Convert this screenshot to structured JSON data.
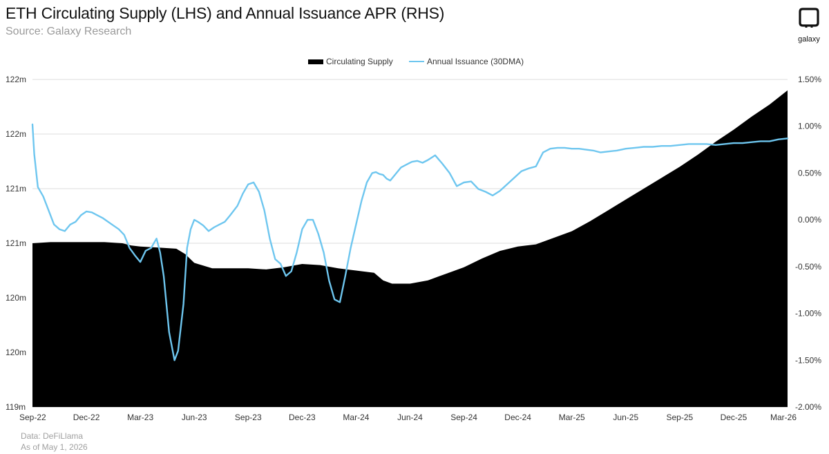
{
  "header": {
    "title": "ETH Circulating Supply (LHS) and Annual Issuance APR (RHS)",
    "subtitle": "Source: Galaxy Research"
  },
  "logo": {
    "icon": "galaxy-logo-icon",
    "word": "galaxy"
  },
  "footer": {
    "data_source": "Data: DeFiLlama",
    "as_of": "As of May 1, 2026"
  },
  "colors": {
    "supply_area": "#000000",
    "issuance_line": "#6ec6ef",
    "grid": "#dddddd"
  },
  "chart_data": {
    "type": "area",
    "title": "ETH Circulating Supply (LHS) and Annual Issuance APR (RHS)",
    "legend": {
      "placement": "top-center",
      "entries": [
        "Circulating Supply",
        "Annual Issuance (30DMA)"
      ]
    },
    "grid": true,
    "x_ticks": [
      "Sep-22",
      "Dec-22",
      "Mar-23",
      "Jun-23",
      "Sep-23",
      "Dec-23",
      "Mar-24",
      "Jun-24",
      "Sep-24",
      "Dec-24",
      "Mar-25",
      "Jun-25",
      "Sep-25",
      "Dec-25",
      "Mar-26"
    ],
    "y_left": {
      "ticks": [
        "119m",
        "120m",
        "120m",
        "121m",
        "121m",
        "122m",
        "122m"
      ],
      "range": [
        119.0,
        122.0
      ]
    },
    "y_right": {
      "ticks": [
        "-2.00%",
        "-1.50%",
        "-1.00%",
        "-0.50%",
        "0.00%",
        "0.50%",
        "1.00%",
        "1.50%"
      ],
      "range": [
        -2.0,
        1.5
      ]
    },
    "series": [
      {
        "name": "Circulating Supply",
        "type": "area",
        "axis": "left",
        "unit": "m ETH",
        "x_month_index": [
          0,
          1,
          2,
          3,
          4,
          5,
          5.5,
          6,
          7,
          8,
          8.5,
          9,
          10,
          11,
          12,
          13,
          14,
          15,
          16,
          17,
          18,
          19,
          19.5,
          20,
          21,
          22,
          23,
          24,
          25,
          26,
          27,
          28,
          29,
          30,
          31,
          32,
          33,
          34,
          35,
          36,
          37,
          38,
          39,
          40,
          41,
          42
        ],
        "values": [
          120.5,
          120.51,
          120.51,
          120.51,
          120.51,
          120.5,
          120.48,
          120.47,
          120.46,
          120.45,
          120.4,
          120.32,
          120.27,
          120.27,
          120.27,
          120.26,
          120.28,
          120.31,
          120.3,
          120.27,
          120.25,
          120.23,
          120.16,
          120.13,
          120.13,
          120.16,
          120.22,
          120.28,
          120.36,
          120.43,
          120.47,
          120.49,
          120.55,
          120.61,
          120.7,
          120.8,
          120.9,
          121.0,
          121.1,
          121.2,
          121.31,
          121.43,
          121.54,
          121.66,
          121.77,
          121.9
        ]
      },
      {
        "name": "Annual Issuance (30DMA)",
        "type": "line",
        "axis": "right",
        "unit": "%",
        "x_month_index": [
          0,
          0.1,
          0.3,
          0.6,
          0.9,
          1.2,
          1.5,
          1.8,
          2.1,
          2.4,
          2.7,
          3.0,
          3.3,
          3.6,
          3.9,
          4.2,
          4.5,
          4.8,
          5.1,
          5.4,
          5.7,
          6.0,
          6.3,
          6.6,
          6.9,
          7.1,
          7.3,
          7.6,
          7.9,
          8.1,
          8.4,
          8.6,
          8.8,
          9.0,
          9.2,
          9.5,
          9.8,
          10.1,
          10.4,
          10.7,
          11.0,
          11.4,
          11.7,
          12.0,
          12.3,
          12.6,
          12.9,
          13.2,
          13.5,
          13.8,
          14.1,
          14.4,
          14.7,
          15.0,
          15.3,
          15.6,
          15.9,
          16.2,
          16.5,
          16.8,
          17.1,
          17.4,
          17.7,
          18.0,
          18.3,
          18.6,
          18.9,
          19.1,
          19.3,
          19.5,
          19.7,
          19.9,
          20.2,
          20.5,
          20.8,
          21.1,
          21.4,
          21.7,
          22.0,
          22.4,
          22.8,
          23.2,
          23.6,
          24.0,
          24.4,
          24.8,
          25.2,
          25.6,
          26.0,
          26.4,
          26.8,
          27.2,
          27.6,
          28.0,
          28.4,
          28.8,
          29.2,
          29.6,
          30.0,
          30.4,
          30.8,
          31.2,
          31.6,
          32.0,
          32.5,
          33.0,
          33.5,
          34.0,
          34.5,
          35.0,
          35.5,
          36.0,
          36.5,
          37.0,
          37.5,
          38.0,
          38.5,
          39.0,
          39.5,
          40.0,
          40.5,
          41.0,
          41.5,
          42.0
        ],
        "values": [
          1.02,
          0.7,
          0.35,
          0.25,
          0.1,
          -0.05,
          -0.1,
          -0.12,
          -0.05,
          -0.02,
          0.05,
          0.09,
          0.08,
          0.05,
          0.02,
          -0.02,
          -0.06,
          -0.1,
          -0.16,
          -0.3,
          -0.38,
          -0.45,
          -0.33,
          -0.3,
          -0.2,
          -0.35,
          -0.6,
          -1.2,
          -1.5,
          -1.4,
          -0.9,
          -0.3,
          -0.1,
          0.0,
          -0.02,
          -0.06,
          -0.12,
          -0.08,
          -0.05,
          -0.02,
          0.05,
          0.15,
          0.28,
          0.38,
          0.4,
          0.3,
          0.1,
          -0.2,
          -0.42,
          -0.47,
          -0.6,
          -0.55,
          -0.35,
          -0.1,
          0.0,
          0.0,
          -0.15,
          -0.35,
          -0.65,
          -0.85,
          -0.88,
          -0.6,
          -0.3,
          -0.05,
          0.2,
          0.4,
          0.5,
          0.51,
          0.49,
          0.48,
          0.44,
          0.42,
          0.49,
          0.56,
          0.59,
          0.62,
          0.63,
          0.61,
          0.64,
          0.69,
          0.6,
          0.5,
          0.36,
          0.4,
          0.41,
          0.33,
          0.3,
          0.26,
          0.31,
          0.38,
          0.45,
          0.52,
          0.55,
          0.57,
          0.72,
          0.76,
          0.77,
          0.77,
          0.76,
          0.76,
          0.75,
          0.74,
          0.72,
          0.73,
          0.74,
          0.76,
          0.77,
          0.78,
          0.78,
          0.79,
          0.79,
          0.8,
          0.81,
          0.81,
          0.81,
          0.8,
          0.81,
          0.82,
          0.82,
          0.83,
          0.84,
          0.84,
          0.86,
          0.87
        ]
      }
    ]
  }
}
